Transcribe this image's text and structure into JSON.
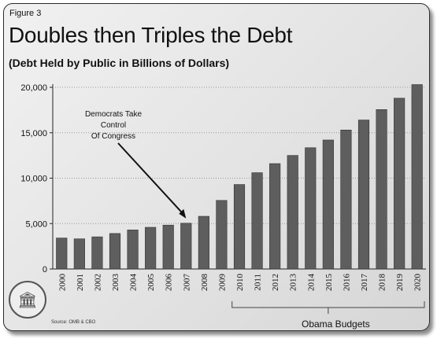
{
  "figure_label": "Figure 3",
  "source_note": "Source: OMB & CBO",
  "seal_icon": "capitol-seal-icon",
  "chart_data": {
    "type": "bar",
    "title": "Doubles then Triples the Debt",
    "subtitle": "(Debt Held by Public in Billions of Dollars)",
    "categories": [
      "2000",
      "2001",
      "2002",
      "2003",
      "2004",
      "2005",
      "2006",
      "2007",
      "2008",
      "2009",
      "2010",
      "2011",
      "2012",
      "2013",
      "2014",
      "2015",
      "2016",
      "2017",
      "2018",
      "2019",
      "2020"
    ],
    "values": [
      3410,
      3320,
      3540,
      3910,
      4300,
      4590,
      4830,
      5040,
      5800,
      7550,
      9300,
      10600,
      11600,
      12500,
      13350,
      14200,
      15300,
      16400,
      17550,
      18800,
      20300
    ],
    "ylim": [
      0,
      20000
    ],
    "yticks": [
      0,
      5000,
      10000,
      15000,
      20000
    ],
    "ytick_labels": [
      "0",
      "5,000",
      "10,000",
      "15,000",
      "20,000"
    ],
    "grid": true,
    "bar_color": "#5e5e5e",
    "annotation": {
      "lines": [
        "Democrats Take",
        "Control",
        "Of Congress"
      ],
      "points_to": "2007"
    },
    "bracket": {
      "label": "Obama Budgets",
      "from": "2010",
      "to": "2020"
    }
  }
}
